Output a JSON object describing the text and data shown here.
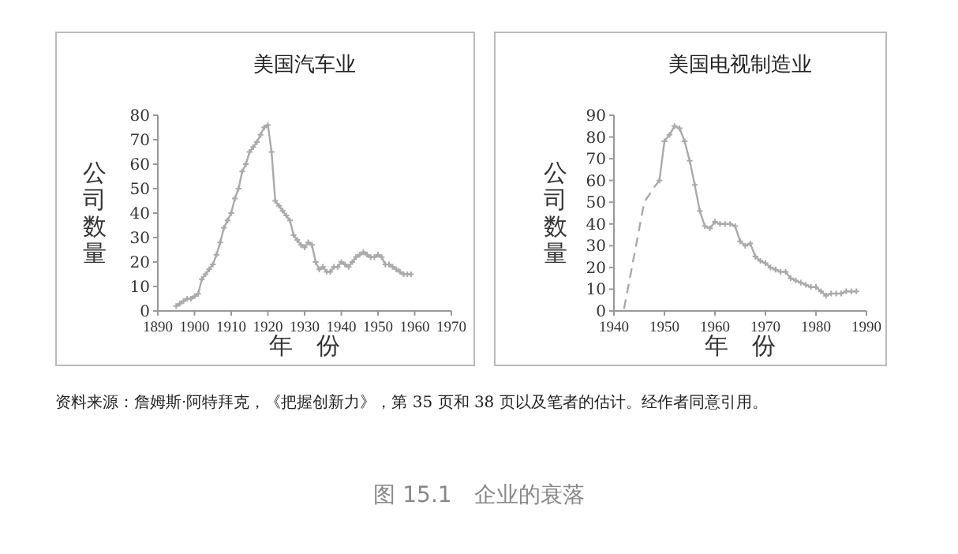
{
  "chart_data": [
    {
      "type": "line",
      "title": "美国汽车业",
      "xlabel": "年　份",
      "ylabel": "公司数量",
      "xlim": [
        1890,
        1970
      ],
      "ylim": [
        0,
        80
      ],
      "xticks": [
        1890,
        1900,
        1910,
        1920,
        1930,
        1940,
        1950,
        1960,
        1970
      ],
      "yticks": [
        0,
        10,
        20,
        30,
        40,
        50,
        60,
        70,
        80
      ],
      "marker": "cross",
      "grid": false,
      "series": [
        {
          "color": "#aaaaaa",
          "line_style": "solid",
          "x": [
            1895,
            1896,
            1897,
            1898,
            1899,
            1900,
            1901,
            1902,
            1903,
            1904,
            1905,
            1906,
            1907,
            1908,
            1909,
            1910,
            1911,
            1912,
            1913,
            1914,
            1915,
            1916,
            1917,
            1918,
            1919,
            1920,
            1921,
            1922,
            1923,
            1924,
            1925,
            1926,
            1927,
            1928,
            1929,
            1930,
            1931,
            1932,
            1933,
            1934,
            1935,
            1936,
            1937,
            1938,
            1939,
            1940,
            1941,
            1942,
            1943,
            1944,
            1945,
            1946,
            1947,
            1948,
            1949,
            1950,
            1951,
            1952,
            1953,
            1954,
            1955,
            1956,
            1957,
            1958,
            1959
          ],
          "values": [
            2,
            3,
            4,
            5,
            5,
            6,
            7,
            13,
            15,
            17,
            19,
            23,
            28,
            34,
            37,
            40,
            46,
            50,
            57,
            60,
            65,
            67,
            69,
            72,
            75,
            76,
            65,
            45,
            43,
            41,
            39,
            37,
            31,
            29,
            27,
            26,
            28,
            27,
            20,
            17,
            18,
            16,
            16,
            18,
            18,
            20,
            19,
            18,
            20,
            22,
            23,
            24,
            23,
            22,
            22,
            23,
            22,
            19,
            19,
            18,
            17,
            16,
            15,
            15,
            15
          ]
        }
      ]
    },
    {
      "type": "line",
      "title": "美国电视制造业",
      "xlabel": "年　份",
      "ylabel": "公司数量",
      "xlim": [
        1940,
        1990
      ],
      "ylim": [
        0,
        90
      ],
      "xticks": [
        1940,
        1950,
        1960,
        1970,
        1980,
        1990
      ],
      "yticks": [
        0,
        10,
        20,
        30,
        40,
        50,
        60,
        70,
        80,
        90
      ],
      "grid": false,
      "series": [
        {
          "color": "#aaaaaa",
          "line_style": "dashed",
          "marker": "none",
          "x": [
            1942,
            1946,
            1948,
            1949
          ],
          "values": [
            1,
            50,
            57,
            60
          ]
        },
        {
          "color": "#aaaaaa",
          "line_style": "solid",
          "marker": "cross",
          "x": [
            1949,
            1950,
            1951,
            1952,
            1953,
            1954,
            1955,
            1956,
            1957,
            1958,
            1959,
            1960,
            1961,
            1962,
            1963,
            1964,
            1965,
            1966,
            1967,
            1968,
            1969,
            1970,
            1971,
            1972,
            1973,
            1974,
            1975,
            1976,
            1977,
            1978,
            1979,
            1980,
            1981,
            1982,
            1983,
            1984,
            1985,
            1986,
            1987,
            1988
          ],
          "values": [
            60,
            78,
            81,
            85,
            84,
            78,
            69,
            58,
            46,
            39,
            38,
            41,
            40,
            40,
            40,
            39,
            32,
            30,
            31,
            25,
            23,
            22,
            20,
            19,
            18,
            18,
            15,
            14,
            13,
            12,
            11,
            11,
            9,
            7,
            8,
            8,
            8,
            9,
            9,
            9
          ]
        }
      ]
    },
    {
      "type": "other",
      "title": "图 15.1　企业的衰落",
      "annotations": [
        "资料来源：詹姆斯·阿特拜克，《把握创新力》，第 35 页和 38 页以及笔者的估计。经作者同意引用。"
      ]
    }
  ]
}
